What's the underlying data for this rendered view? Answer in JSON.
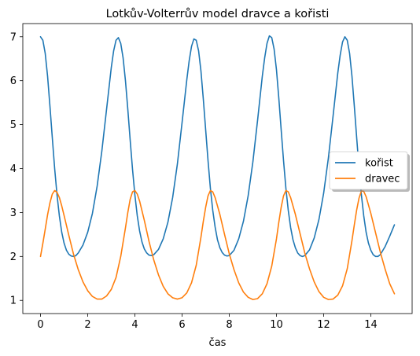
{
  "chart_data": {
    "type": "line",
    "title": "Lotkův-Volterrův model dravce a kořisti",
    "xlabel": "čas",
    "ylabel": "",
    "xlim": [
      -0.75,
      15.75
    ],
    "ylim": [
      0.7,
      7.3
    ],
    "xticks": [
      0,
      2,
      4,
      6,
      8,
      10,
      12,
      14
    ],
    "yticks": [
      1,
      2,
      3,
      4,
      5,
      6,
      7
    ],
    "grid": false,
    "legend_position": "center-right",
    "series": [
      {
        "name": "kořist",
        "color": "#1f77b4",
        "x": [
          0,
          0.1,
          0.2,
          0.3,
          0.4,
          0.5,
          0.6,
          0.7,
          0.8,
          0.9,
          1.0,
          1.1,
          1.2,
          1.3,
          1.4,
          1.5,
          1.6,
          1.8,
          2.0,
          2.2,
          2.4,
          2.6,
          2.8,
          3.0,
          3.1,
          3.2,
          3.3,
          3.4,
          3.5,
          3.6,
          3.7,
          3.8,
          3.9,
          4.0,
          4.1,
          4.2,
          4.3,
          4.4,
          4.5,
          4.6,
          4.7,
          4.8,
          5.0,
          5.2,
          5.4,
          5.6,
          5.8,
          6.0,
          6.2,
          6.3,
          6.4,
          6.5,
          6.6,
          6.7,
          6.8,
          6.9,
          7.0,
          7.1,
          7.2,
          7.3,
          7.4,
          7.5,
          7.6,
          7.7,
          7.8,
          7.9,
          8.0,
          8.2,
          8.4,
          8.6,
          8.8,
          9.0,
          9.2,
          9.4,
          9.5,
          9.6,
          9.7,
          9.8,
          9.9,
          10.0,
          10.1,
          10.2,
          10.3,
          10.4,
          10.5,
          10.6,
          10.7,
          10.8,
          10.9,
          11.0,
          11.1,
          11.2,
          11.4,
          11.6,
          11.8,
          12.0,
          12.2,
          12.4,
          12.6,
          12.7,
          12.8,
          12.9,
          13.0,
          13.1,
          13.2,
          13.3,
          13.4,
          13.5,
          13.6,
          13.7,
          13.8,
          13.9,
          14.0,
          14.1,
          14.2,
          14.3,
          14.4,
          14.6,
          14.8,
          15.0
        ],
        "y": [
          7.0,
          6.92,
          6.62,
          6.1,
          5.42,
          4.7,
          4.0,
          3.4,
          2.92,
          2.55,
          2.3,
          2.14,
          2.05,
          2.01,
          2.0,
          2.02,
          2.08,
          2.26,
          2.55,
          2.98,
          3.6,
          4.4,
          5.35,
          6.3,
          6.68,
          6.92,
          6.98,
          6.85,
          6.52,
          6.0,
          5.35,
          4.65,
          3.98,
          3.4,
          2.93,
          2.58,
          2.33,
          2.17,
          2.08,
          2.03,
          2.02,
          2.04,
          2.16,
          2.4,
          2.78,
          3.34,
          4.1,
          5.05,
          6.02,
          6.45,
          6.78,
          6.95,
          6.92,
          6.68,
          6.22,
          5.58,
          4.88,
          4.18,
          3.55,
          3.05,
          2.67,
          2.38,
          2.2,
          2.09,
          2.03,
          2.01,
          2.02,
          2.14,
          2.4,
          2.8,
          3.38,
          4.15,
          5.1,
          6.1,
          6.52,
          6.85,
          7.02,
          6.98,
          6.72,
          6.25,
          5.6,
          4.88,
          4.18,
          3.55,
          3.05,
          2.66,
          2.38,
          2.2,
          2.08,
          2.02,
          2.0,
          2.02,
          2.15,
          2.42,
          2.84,
          3.44,
          4.24,
          5.2,
          6.18,
          6.58,
          6.88,
          7.0,
          6.92,
          6.62,
          6.1,
          5.42,
          4.7,
          4.0,
          3.4,
          2.92,
          2.55,
          2.3,
          2.14,
          2.04,
          2.0,
          2.0,
          2.04,
          2.22,
          2.46,
          2.72
        ]
      },
      {
        "name": "dravec",
        "color": "#ff7f0e",
        "x": [
          0,
          0.1,
          0.2,
          0.3,
          0.4,
          0.5,
          0.6,
          0.7,
          0.8,
          0.9,
          1.0,
          1.2,
          1.4,
          1.6,
          1.8,
          2.0,
          2.2,
          2.4,
          2.6,
          2.8,
          3.0,
          3.2,
          3.4,
          3.6,
          3.7,
          3.8,
          3.9,
          4.0,
          4.1,
          4.2,
          4.4,
          4.6,
          4.8,
          5.0,
          5.2,
          5.4,
          5.6,
          5.8,
          6.0,
          6.2,
          6.4,
          6.6,
          6.8,
          6.9,
          7.0,
          7.1,
          7.2,
          7.3,
          7.4,
          7.6,
          7.8,
          8.0,
          8.2,
          8.4,
          8.6,
          8.8,
          9.0,
          9.2,
          9.4,
          9.6,
          9.8,
          10.0,
          10.1,
          10.2,
          10.3,
          10.4,
          10.5,
          10.6,
          10.8,
          11.0,
          11.2,
          11.4,
          11.6,
          11.8,
          12.0,
          12.2,
          12.4,
          12.6,
          12.8,
          13.0,
          13.2,
          13.3,
          13.4,
          13.5,
          13.6,
          13.7,
          13.8,
          14.0,
          14.2,
          14.4,
          14.6,
          14.8,
          15.0
        ],
        "y": [
          2.0,
          2.3,
          2.62,
          2.95,
          3.22,
          3.42,
          3.5,
          3.46,
          3.34,
          3.15,
          2.93,
          2.48,
          2.05,
          1.7,
          1.42,
          1.22,
          1.09,
          1.03,
          1.03,
          1.1,
          1.25,
          1.52,
          2.0,
          2.65,
          3.0,
          3.3,
          3.47,
          3.5,
          3.42,
          3.26,
          2.82,
          2.34,
          1.92,
          1.58,
          1.32,
          1.15,
          1.06,
          1.03,
          1.06,
          1.17,
          1.4,
          1.8,
          2.44,
          2.8,
          3.12,
          3.38,
          3.5,
          3.47,
          3.34,
          2.96,
          2.5,
          2.06,
          1.7,
          1.4,
          1.19,
          1.07,
          1.02,
          1.04,
          1.15,
          1.38,
          1.78,
          2.4,
          2.78,
          3.12,
          3.38,
          3.5,
          3.47,
          3.34,
          2.96,
          2.52,
          2.08,
          1.72,
          1.42,
          1.2,
          1.07,
          1.02,
          1.03,
          1.12,
          1.33,
          1.72,
          2.36,
          2.72,
          3.06,
          3.33,
          3.49,
          3.48,
          3.36,
          2.98,
          2.54,
          2.1,
          1.72,
          1.38,
          1.15
        ]
      }
    ]
  }
}
